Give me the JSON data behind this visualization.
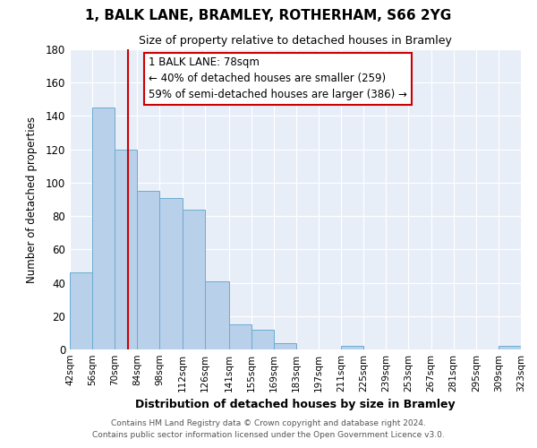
{
  "title": "1, BALK LANE, BRAMLEY, ROTHERHAM, S66 2YG",
  "subtitle": "Size of property relative to detached houses in Bramley",
  "xlabel": "Distribution of detached houses by size in Bramley",
  "ylabel": "Number of detached properties",
  "bar_color": "#b8d0ea",
  "bar_edge_color": "#6aacd0",
  "bg_color": "#e8eef8",
  "grid_color": "#ffffff",
  "bins": [
    42,
    56,
    70,
    84,
    98,
    112,
    126,
    141,
    155,
    169,
    183,
    197,
    211,
    225,
    239,
    253,
    267,
    281,
    295,
    309,
    323
  ],
  "values": [
    46,
    145,
    120,
    95,
    91,
    84,
    41,
    15,
    12,
    4,
    0,
    0,
    2,
    0,
    0,
    0,
    0,
    0,
    0,
    2
  ],
  "tick_labels": [
    "42sqm",
    "56sqm",
    "70sqm",
    "84sqm",
    "98sqm",
    "112sqm",
    "126sqm",
    "141sqm",
    "155sqm",
    "169sqm",
    "183sqm",
    "197sqm",
    "211sqm",
    "225sqm",
    "239sqm",
    "253sqm",
    "267sqm",
    "281sqm",
    "295sqm",
    "309sqm",
    "323sqm"
  ],
  "property_line_x": 78,
  "property_line_color": "#cc0000",
  "annotation_text": "1 BALK LANE: 78sqm\n← 40% of detached houses are smaller (259)\n59% of semi-detached houses are larger (386) →",
  "annotation_box_color": "#ffffff",
  "annotation_box_edge": "#cc0000",
  "ylim": [
    0,
    180
  ],
  "yticks": [
    0,
    20,
    40,
    60,
    80,
    100,
    120,
    140,
    160,
    180
  ],
  "footer_line1": "Contains HM Land Registry data © Crown copyright and database right 2024.",
  "footer_line2": "Contains public sector information licensed under the Open Government Licence v3.0."
}
